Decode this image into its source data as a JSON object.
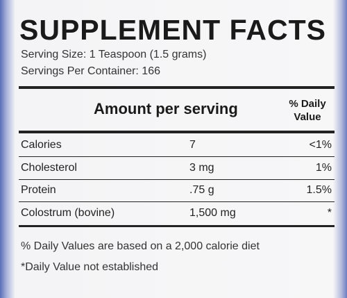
{
  "title": "SUPPLEMENT FACTS",
  "serving_size": "Serving Size: 1 Teaspoon (1.5 grams)",
  "servings_per_container": "Servings Per Container: 166",
  "table": {
    "header": [
      "Amount per serving",
      "% Daily Value"
    ],
    "rows": [
      [
        "Calories",
        "7",
        "<1%"
      ],
      [
        "Cholesterol",
        "3 mg",
        "1%"
      ],
      [
        "Protein",
        ".75 g",
        "1.5%"
      ],
      [
        "Colostrum (bovine)",
        "1,500 mg",
        "*"
      ]
    ]
  },
  "footnotes": [
    "% Daily Values are based on a 2,000 calorie diet",
    "*Daily Value not established"
  ]
}
